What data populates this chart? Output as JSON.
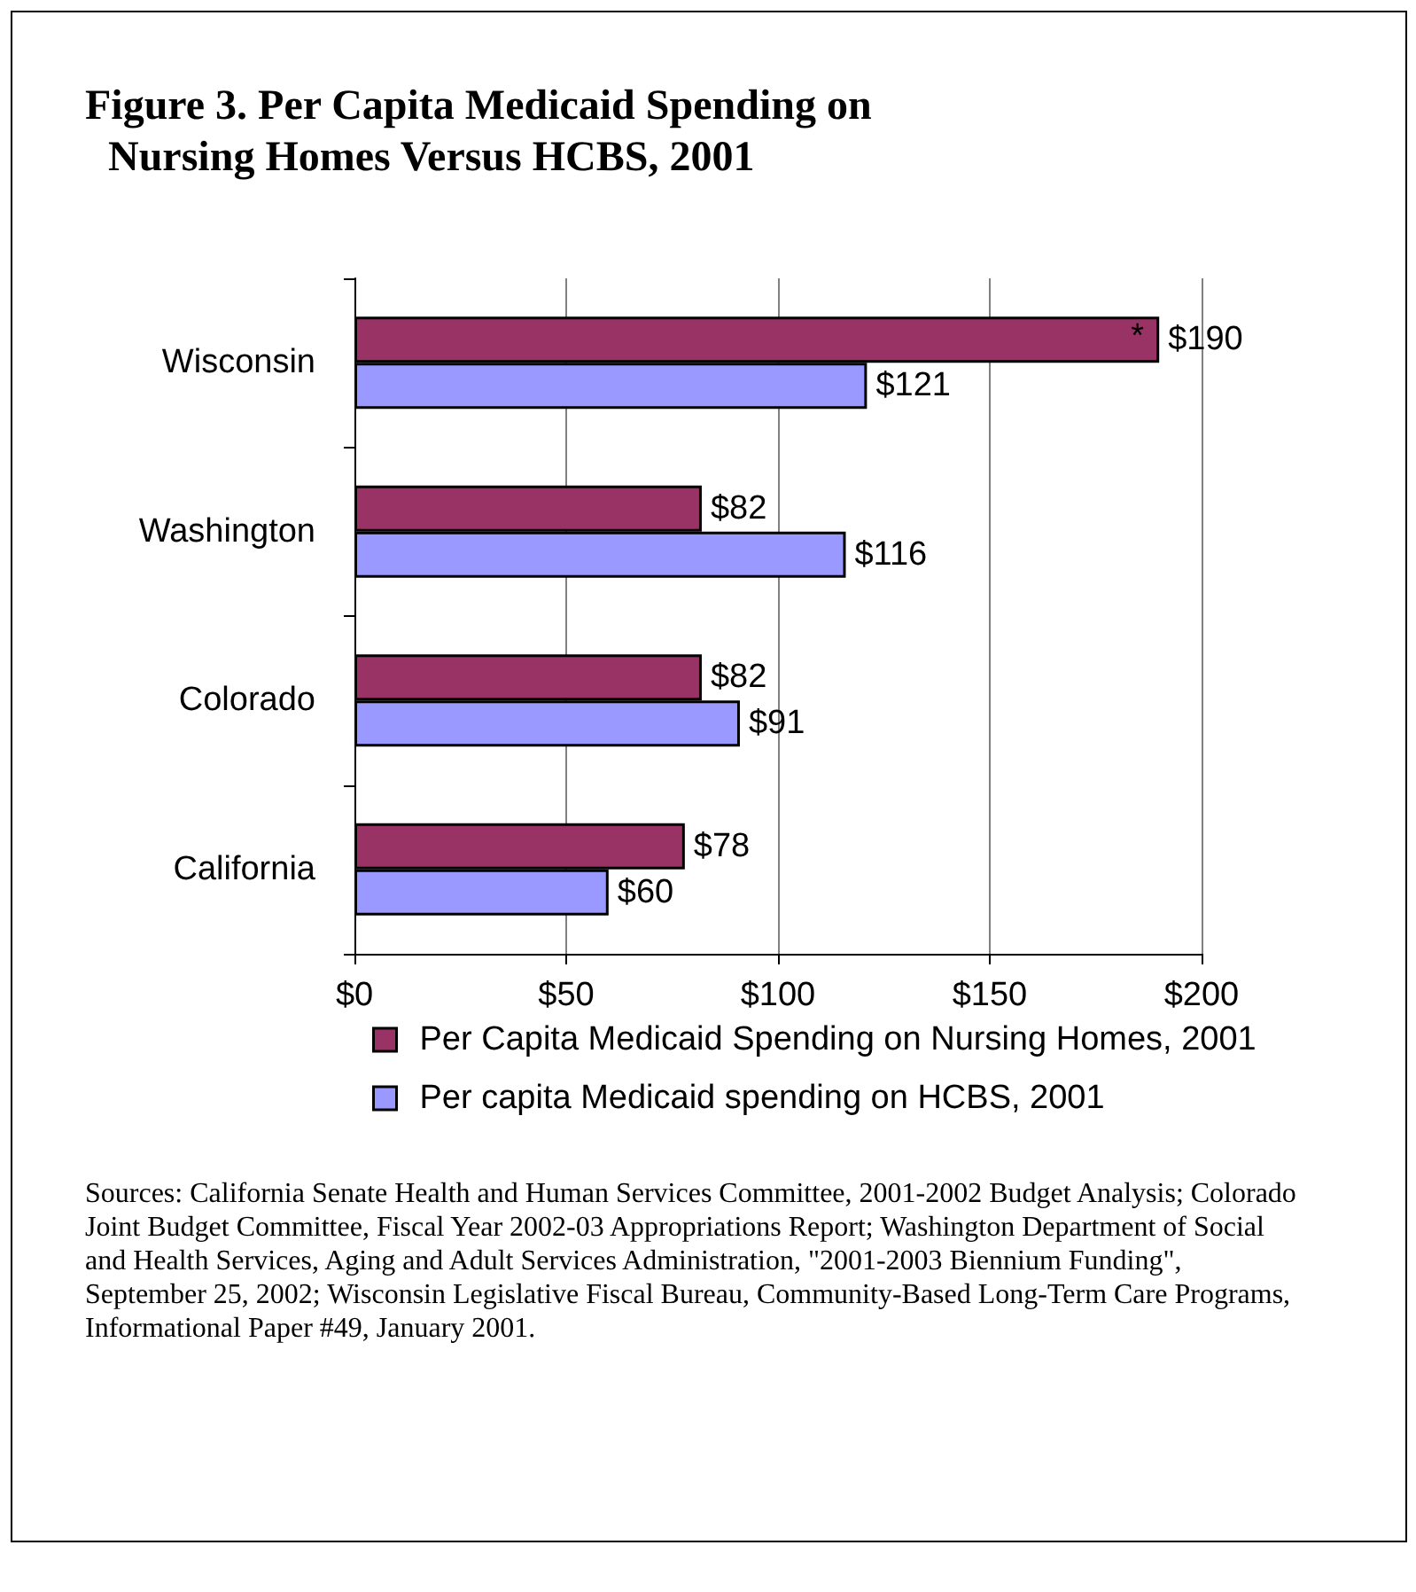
{
  "chart_data": {
    "type": "bar",
    "orientation": "horizontal",
    "title": "Figure 3. Per Capita Medicaid Spending on Nursing Homes Versus HCBS, 2001",
    "categories": [
      "Wisconsin",
      "Washington",
      "Colorado",
      "California"
    ],
    "series": [
      {
        "name": "Per Capita Medicaid Spending on Nursing Homes, 2001",
        "color": "#993366",
        "values": [
          190,
          82,
          82,
          78
        ],
        "value_labels": [
          "$190",
          "$82",
          "$82",
          "$78"
        ]
      },
      {
        "name": "Per capita Medicaid spending on HCBS, 2001",
        "color": "#9999ff",
        "values": [
          121,
          116,
          91,
          60
        ],
        "value_labels": [
          "$121",
          "$116",
          "$91",
          "$60"
        ]
      }
    ],
    "xlim": [
      0,
      200
    ],
    "xticks": [
      {
        "value": 0,
        "label": "$0"
      },
      {
        "value": 50,
        "label": "$50"
      },
      {
        "value": 100,
        "label": "$100"
      },
      {
        "value": 150,
        "label": "$150"
      },
      {
        "value": 200,
        "label": "$200"
      }
    ],
    "grid": "x",
    "legend": "bottom",
    "annotations": [
      {
        "text": "*",
        "x": 190,
        "y": "Wisconsin"
      },
      "Sources: California Senate Health and Human Services Committee, 2001-2002 Budget Analysis; Colorado Joint Budget Committee, Fiscal Year 2002-03 Appropriations Report; Washington Department of Social and Health Services, Aging and Adult Services Administration, \"2001-2003 Biennium Funding\", September 25, 2002; Wisconsin Legislative Fiscal Bureau, Community-Based Long-Term Care Programs, Informational Paper #49, January 2001."
    ]
  }
}
